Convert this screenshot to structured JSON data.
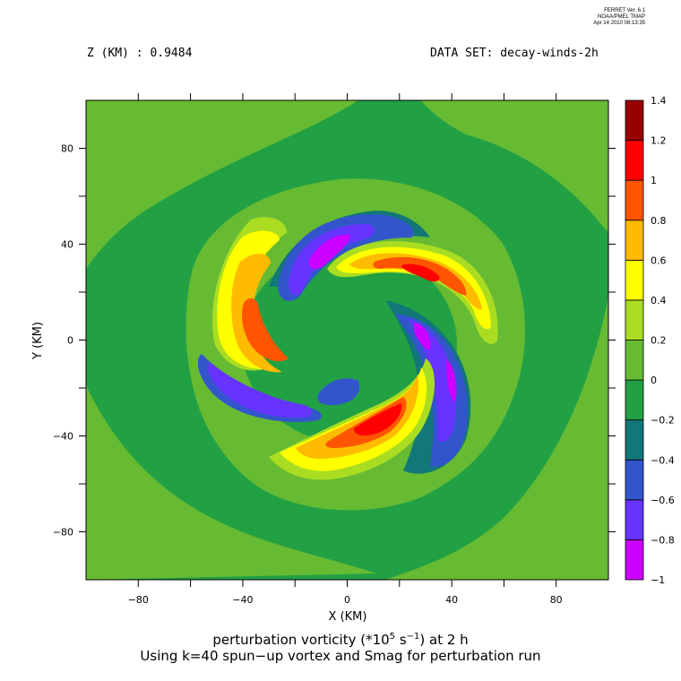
{
  "stamp": {
    "line1": "FERRET Ver. 6.1",
    "line2": "NOAA/PMEL TMAP",
    "line3": "Apr 14 2010 08:13:35"
  },
  "header": {
    "z_label": "Z (KM) : 0.9484",
    "dataset_label": "DATA SET: decay-winds-2h"
  },
  "caption": {
    "title_pre": "perturbation vorticity (*10",
    "title_sup": "5",
    "title_mid": " s",
    "title_sup2": "−1",
    "title_post": ") at 2 h",
    "subtitle": "Using k=40 spun−up vortex and Smag for perturbation run"
  },
  "chart_data": {
    "type": "heatmap",
    "xlabel": "X (KM)",
    "ylabel": "Y (KM)",
    "xlim": [
      -100,
      100
    ],
    "ylim": [
      -100,
      100
    ],
    "xticks": [
      -80,
      -40,
      0,
      40,
      80
    ],
    "yticks": [
      -80,
      -40,
      0,
      40,
      80
    ],
    "xtick_labels": [
      "−80",
      "−40",
      "0",
      "40",
      "80"
    ],
    "ytick_labels": [
      "−80",
      "−40",
      "0",
      "40",
      "80"
    ],
    "colorbar": {
      "levels": [
        -1,
        -0.8,
        -0.6,
        -0.4,
        -0.2,
        0,
        0.2,
        0.4,
        0.6,
        0.8,
        1,
        1.2,
        1.4
      ],
      "labels": [
        "−1",
        "−0.8",
        "−0.6",
        "−0.4",
        "−0.2",
        "0",
        "0.2",
        "0.4",
        "0.6",
        "0.8",
        "1",
        "1.2",
        "1.4"
      ],
      "colors": [
        "#cc00ff",
        "#6633ff",
        "#3355cc",
        "#117777",
        "#22a044",
        "#66bb33",
        "#aadd22",
        "#ffff00",
        "#ffbb00",
        "#ff5500",
        "#ff0000",
        "#990000"
      ]
    }
  }
}
